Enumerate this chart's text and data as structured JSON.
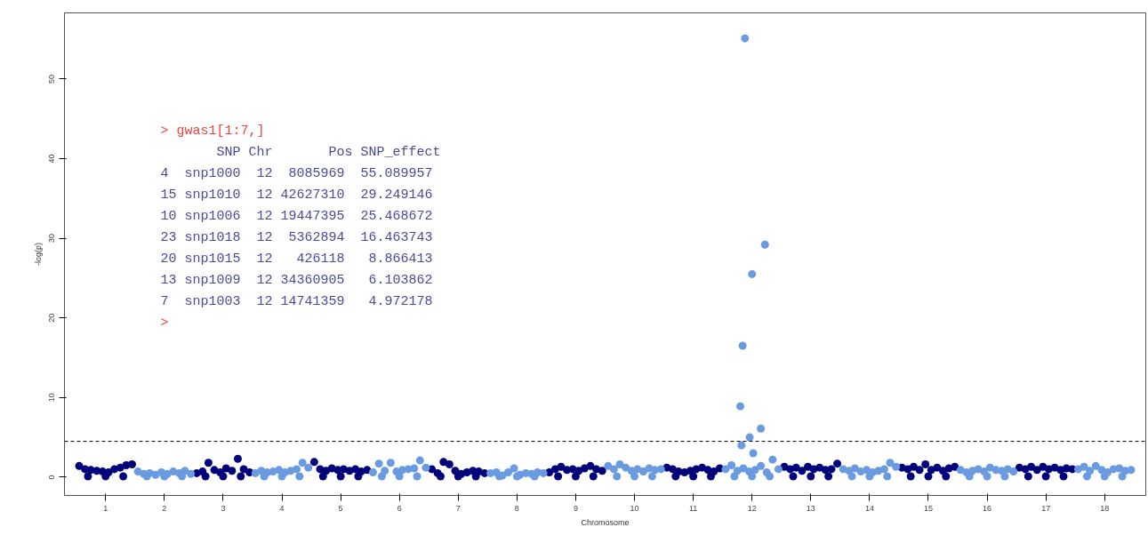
{
  "chart_data": {
    "type": "scatter",
    "xlabel": "Chromosome",
    "ylabel": "-log(p)",
    "xlim": [
      0.3,
      18.7
    ],
    "ylim": [
      -2.3,
      58.3
    ],
    "xticks": [
      1,
      2,
      3,
      4,
      5,
      6,
      7,
      8,
      9,
      10,
      11,
      12,
      13,
      14,
      15,
      16,
      17,
      18
    ],
    "yticks": [
      0,
      10,
      20,
      30,
      40,
      50
    ],
    "grid": false,
    "marker": "circle",
    "ref_lines": [
      {
        "axis": "y",
        "value": 4.5,
        "line_style": "dashed",
        "color": "#000000"
      }
    ],
    "annotations": [
      "> gwas1[1:7,]",
      "       SNP Chr       Pos SNP_effect",
      "4  snp1000  12  8085969  55.089957",
      "15 snp1010  12 42627310  29.249146",
      "10 snp1006  12 19447395  25.468672",
      "23 snp1018  12  5362894  16.463743",
      "20 snp1015  12   426118   8.866413",
      "13 snp1009  12 34360905   6.103862",
      "7  snp1003  12 14741359   4.972178",
      ">"
    ],
    "series": [
      {
        "color": "#00007a",
        "x": [
          0.55,
          0.65,
          0.75,
          0.85,
          0.95,
          1.05,
          1.15,
          1.25,
          1.35,
          1.45,
          0.7,
          1.0,
          1.3,
          2.55,
          2.65,
          2.75,
          2.85,
          2.95,
          3.05,
          3.15,
          3.25,
          3.35,
          3.45,
          2.7,
          3.0,
          3.3,
          4.55,
          4.65,
          4.75,
          4.85,
          4.95,
          5.05,
          5.15,
          5.25,
          5.35,
          5.45,
          4.7,
          5.0,
          5.3,
          6.55,
          6.65,
          6.75,
          6.85,
          6.95,
          7.05,
          7.15,
          7.25,
          7.35,
          7.45,
          6.7,
          7.0,
          7.3,
          8.55,
          8.65,
          8.75,
          8.85,
          8.95,
          9.05,
          9.15,
          9.25,
          9.35,
          9.45,
          8.7,
          9.0,
          9.3,
          10.55,
          10.65,
          10.75,
          10.85,
          10.95,
          11.05,
          11.15,
          11.25,
          11.35,
          11.45,
          10.7,
          11.0,
          11.3,
          12.55,
          12.65,
          12.75,
          12.85,
          12.95,
          13.05,
          13.15,
          13.25,
          13.35,
          13.45,
          12.7,
          13.0,
          13.3,
          14.55,
          14.65,
          14.75,
          14.85,
          14.95,
          15.05,
          15.15,
          15.25,
          15.35,
          15.45,
          14.7,
          15.0,
          15.3,
          16.55,
          16.65,
          16.75,
          16.85,
          16.95,
          17.05,
          17.15,
          17.25,
          17.35,
          17.45,
          16.7,
          17.0,
          17.3
        ],
        "values": [
          1.4,
          1.0,
          0.9,
          0.8,
          0.7,
          0.6,
          1.0,
          1.2,
          1.5,
          1.6,
          0.1,
          0.1,
          0.1,
          0.5,
          0.7,
          1.8,
          0.9,
          0.6,
          1.1,
          0.8,
          2.3,
          1.0,
          0.6,
          0.1,
          0.1,
          0.1,
          1.9,
          1.0,
          0.8,
          1.1,
          0.9,
          1.0,
          0.8,
          1.0,
          0.7,
          0.9,
          0.1,
          0.1,
          0.1,
          1.0,
          0.5,
          1.9,
          1.6,
          0.8,
          0.4,
          0.6,
          0.8,
          0.7,
          0.5,
          0.1,
          0.1,
          0.1,
          0.6,
          1.0,
          1.3,
          0.9,
          1.0,
          0.8,
          1.1,
          1.4,
          1.0,
          0.8,
          0.1,
          0.1,
          0.1,
          1.2,
          1.0,
          0.7,
          0.6,
          0.8,
          1.0,
          1.2,
          0.9,
          0.7,
          1.1,
          0.1,
          0.1,
          0.1,
          1.3,
          1.0,
          1.2,
          0.8,
          1.3,
          1.0,
          1.2,
          0.9,
          1.0,
          1.7,
          0.1,
          0.1,
          0.1,
          1.2,
          1.0,
          1.3,
          0.9,
          1.6,
          0.9,
          1.2,
          0.8,
          1.1,
          1.3,
          0.1,
          0.1,
          0.1,
          1.2,
          1.0,
          1.3,
          0.9,
          1.3,
          1.0,
          1.2,
          0.9,
          1.1,
          1.0,
          0.1,
          0.1,
          0.1
        ]
      },
      {
        "color": "#6a9be0",
        "x": [
          1.55,
          1.65,
          1.75,
          1.85,
          1.95,
          2.05,
          2.15,
          2.25,
          2.35,
          2.45,
          1.7,
          2.0,
          2.3,
          3.55,
          3.65,
          3.75,
          3.85,
          3.95,
          4.05,
          4.15,
          4.25,
          4.35,
          4.45,
          3.7,
          4.0,
          4.3,
          5.55,
          5.65,
          5.75,
          5.85,
          5.95,
          6.05,
          6.15,
          6.25,
          6.35,
          6.45,
          5.7,
          6.0,
          6.3,
          7.55,
          7.65,
          7.75,
          7.85,
          7.95,
          8.05,
          8.15,
          8.25,
          8.35,
          8.45,
          7.7,
          8.0,
          8.3,
          9.55,
          9.65,
          9.75,
          9.85,
          9.95,
          10.05,
          10.15,
          10.25,
          10.35,
          10.45,
          9.7,
          10.0,
          10.3,
          11.55,
          11.65,
          11.75,
          11.85,
          11.95,
          12.05,
          12.15,
          12.25,
          12.35,
          12.45,
          11.7,
          12.0,
          12.3,
          11.88,
          12.22,
          12.0,
          11.84,
          11.8,
          12.15,
          11.96,
          11.82,
          12.02,
          13.55,
          13.65,
          13.75,
          13.85,
          13.95,
          14.05,
          14.15,
          14.25,
          14.35,
          14.45,
          13.7,
          14.0,
          14.3,
          15.55,
          15.65,
          15.75,
          15.85,
          15.95,
          16.05,
          16.15,
          16.25,
          16.35,
          16.45,
          15.7,
          16.0,
          16.3,
          17.55,
          17.65,
          17.75,
          17.85,
          17.95,
          18.05,
          18.15,
          18.25,
          18.35,
          18.45,
          17.7,
          18.0,
          18.3
        ],
        "values": [
          0.7,
          0.4,
          0.5,
          0.3,
          0.6,
          0.4,
          0.7,
          0.5,
          0.8,
          0.4,
          0.1,
          0.1,
          0.1,
          0.5,
          0.8,
          0.6,
          0.7,
          0.9,
          0.6,
          0.8,
          1.0,
          1.8,
          1.2,
          0.1,
          0.1,
          0.1,
          0.6,
          1.7,
          0.8,
          1.8,
          0.7,
          0.9,
          1.0,
          1.1,
          2.1,
          1.2,
          0.1,
          0.1,
          0.1,
          0.5,
          0.6,
          0.2,
          0.6,
          1.1,
          0.3,
          0.5,
          0.4,
          0.6,
          0.5,
          0.1,
          0.1,
          0.1,
          1.4,
          1.0,
          1.6,
          1.2,
          0.8,
          1.0,
          0.7,
          1.1,
          0.9,
          1.0,
          0.1,
          0.1,
          0.1,
          1.0,
          1.5,
          0.8,
          1.1,
          0.7,
          0.9,
          1.4,
          0.6,
          2.2,
          1.0,
          0.1,
          0.1,
          0.1,
          55.1,
          29.2,
          25.5,
          16.5,
          8.9,
          6.1,
          5.0,
          4.0,
          3.0,
          1.0,
          0.8,
          1.1,
          0.7,
          0.9,
          0.6,
          0.8,
          1.0,
          1.8,
          1.3,
          0.1,
          0.1,
          0.1,
          0.9,
          0.6,
          0.8,
          1.0,
          0.7,
          1.2,
          0.9,
          0.8,
          1.0,
          0.7,
          0.1,
          0.1,
          0.1,
          1.0,
          1.3,
          0.8,
          1.4,
          0.9,
          0.6,
          1.0,
          1.1,
          0.8,
          0.9,
          0.1,
          0.1,
          0.1
        ]
      }
    ]
  }
}
